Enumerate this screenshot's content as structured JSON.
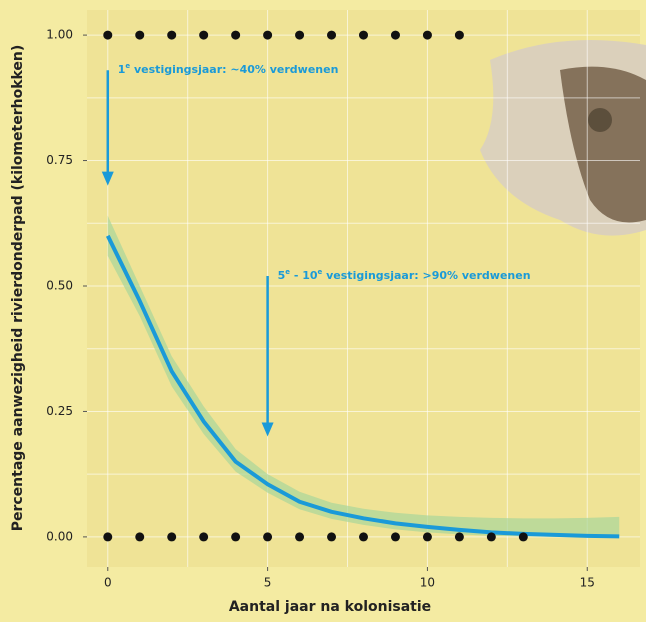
{
  "chart_data": {
    "type": "line",
    "xlabel": "Aantal jaar na kolonisatie",
    "ylabel": "Percentage aanwezigheid rivierdonderpad (kilometerhokken)",
    "xlim": [
      -0.65,
      16.65
    ],
    "ylim": [
      -0.06,
      1.05
    ],
    "xticks": [
      0,
      5,
      10,
      15
    ],
    "yticks": [
      {
        "value": 0,
        "label": "0.00"
      },
      {
        "value": 0.25,
        "label": "0.25"
      },
      {
        "value": 0.5,
        "label": "0.50"
      },
      {
        "value": 0.75,
        "label": "0.75"
      },
      {
        "value": 1,
        "label": "1.00"
      }
    ],
    "x_gridlines": [
      0,
      2.5,
      5,
      7.5,
      10,
      12.5,
      15
    ],
    "y_gridlines": [
      0,
      0.125,
      0.25,
      0.375,
      0.5,
      0.625,
      0.75,
      0.875,
      1
    ],
    "grid": true,
    "x": [
      0,
      1,
      2,
      3,
      4,
      5,
      6,
      7,
      8,
      9,
      10,
      11,
      12,
      13,
      14,
      15,
      16
    ],
    "series": [
      {
        "color": "#1a9ad8",
        "values": [
          0.6,
          0.47,
          0.33,
          0.23,
          0.15,
          0.105,
          0.07,
          0.05,
          0.037,
          0.027,
          0.02,
          0.014,
          0.009,
          0.006,
          0.004,
          0.002,
          0.001
        ],
        "upper": [
          0.64,
          0.5,
          0.36,
          0.26,
          0.175,
          0.125,
          0.09,
          0.068,
          0.056,
          0.048,
          0.043,
          0.04,
          0.038,
          0.037,
          0.037,
          0.038,
          0.04
        ],
        "lower": [
          0.56,
          0.44,
          0.3,
          0.205,
          0.13,
          0.088,
          0.055,
          0.036,
          0.024,
          0.015,
          0.009,
          0.005,
          0.002,
          0.001,
          0,
          0,
          0
        ],
        "band_color": "#a9d59a"
      }
    ],
    "observations": [
      {
        "y": 1,
        "x": [
          0,
          1,
          2,
          3,
          4,
          5,
          6,
          7,
          8,
          9,
          10,
          11
        ]
      },
      {
        "y": 0,
        "x": [
          0,
          1,
          2,
          3,
          4,
          5,
          6,
          7,
          8,
          9,
          10,
          11,
          12,
          13
        ]
      }
    ],
    "annotations": [
      {
        "x": 0,
        "y_from": 0.93,
        "y_to": 0.7,
        "segments": [
          {
            "t": "1"
          },
          {
            "t": "e",
            "sup": true
          },
          {
            "t": " vestigingsjaar: ~40% verdwenen"
          }
        ]
      },
      {
        "x": 5,
        "y_from": 0.52,
        "y_to": 0.2,
        "segments": [
          {
            "t": "5"
          },
          {
            "t": "e",
            "sup": true
          },
          {
            "t": " - 10"
          },
          {
            "t": "e",
            "sup": true
          },
          {
            "t": " vestigingsjaar: >90% verdwenen"
          }
        ]
      }
    ]
  }
}
